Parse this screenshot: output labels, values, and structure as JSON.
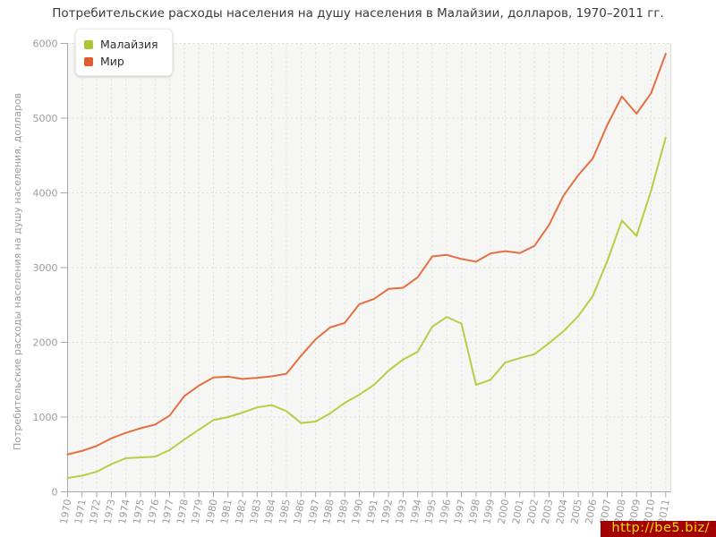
{
  "title": "Потребительские расходы населения на душу населения в Малайзии, долларов, 1970–2011 гг.",
  "legend": {
    "items": [
      {
        "label": "Малайзия",
        "color": "#a9c72f"
      },
      {
        "label": "Мир",
        "color": "#df5c2c"
      }
    ]
  },
  "y_axis": {
    "label": "Потребительские расходы населения на душу населения, долларов",
    "ticks": [
      "0",
      "1000",
      "2000",
      "3000",
      "4000",
      "5000",
      "6000"
    ]
  },
  "watermark": {
    "text": "http://be5.biz/"
  },
  "chart_data": {
    "type": "line",
    "title": "Потребительские расходы населения на душу населения в Малайзии, долларов, 1970–2011 гг.",
    "xlabel": "",
    "ylabel": "Потребительские расходы населения на душу населения, долларов",
    "ylim": [
      0,
      6000
    ],
    "grid": true,
    "legend_position": "top-left",
    "x": [
      1970,
      1971,
      1972,
      1973,
      1974,
      1975,
      1976,
      1977,
      1978,
      1979,
      1980,
      1981,
      1982,
      1983,
      1984,
      1985,
      1986,
      1987,
      1988,
      1989,
      1990,
      1991,
      1992,
      1993,
      1994,
      1995,
      1996,
      1997,
      1998,
      1999,
      2000,
      2001,
      2002,
      2003,
      2004,
      2005,
      2006,
      2007,
      2008,
      2009,
      2010,
      2011
    ],
    "series": [
      {
        "name": "Малайзия",
        "color": "#b5ce44",
        "values": [
          185,
          215,
          270,
          370,
          450,
          460,
          470,
          560,
          700,
          830,
          960,
          1000,
          1060,
          1130,
          1160,
          1080,
          920,
          940,
          1050,
          1190,
          1300,
          1430,
          1620,
          1770,
          1875,
          2210,
          2340,
          2250,
          1430,
          1500,
          1730,
          1790,
          1840,
          1990,
          2150,
          2350,
          2620,
          3090,
          3630,
          3425,
          4030,
          4740
        ]
      },
      {
        "name": "Мир",
        "color": "#e46f41",
        "values": [
          500,
          548,
          615,
          715,
          790,
          850,
          900,
          1020,
          1280,
          1420,
          1530,
          1540,
          1510,
          1525,
          1545,
          1580,
          1820,
          2040,
          2200,
          2260,
          2510,
          2580,
          2715,
          2730,
          2870,
          3150,
          3170,
          3115,
          3080,
          3190,
          3220,
          3195,
          3290,
          3570,
          3965,
          4235,
          4460,
          4910,
          5290,
          5060,
          5335,
          5860
        ]
      }
    ]
  }
}
